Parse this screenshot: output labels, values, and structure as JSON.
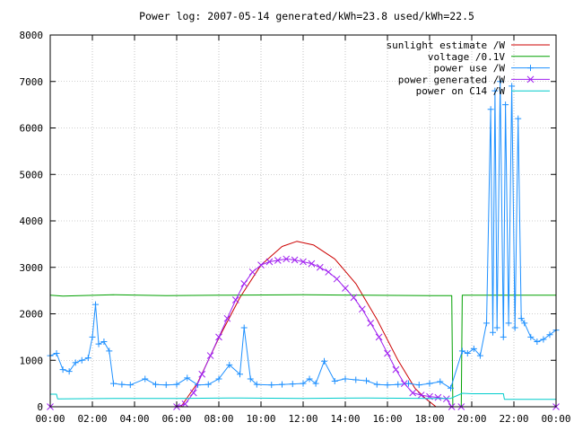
{
  "chart_data": {
    "type": "line",
    "title": "Power log: 2007-05-14 generated/kWh=23.8 used/kWh=22.5",
    "xlabel": "",
    "ylabel": "",
    "x_unit": "hours",
    "xlim": [
      0,
      24
    ],
    "ylim": [
      0,
      8000
    ],
    "x_ticks": [
      0,
      2,
      4,
      6,
      8,
      10,
      12,
      14,
      16,
      18,
      20,
      22,
      24
    ],
    "x_tick_labels": [
      "00:00",
      "02:00",
      "04:00",
      "06:00",
      "08:00",
      "10:00",
      "12:00",
      "14:00",
      "16:00",
      "18:00",
      "20:00",
      "22:00",
      "00:00"
    ],
    "y_ticks": [
      0,
      1000,
      2000,
      3000,
      4000,
      5000,
      6000,
      7000,
      8000
    ],
    "y_tick_labels": [
      "0",
      "1000",
      "2000",
      "3000",
      "4000",
      "5000",
      "6000",
      "7000",
      "8000"
    ],
    "grid": true,
    "legend_position": "top-right",
    "series": [
      {
        "name": "sunlight estimate /W",
        "color": "#cc0000",
        "marker": "none",
        "x": [
          6.2,
          7.0,
          8.0,
          9.0,
          10.0,
          11.0,
          11.7,
          12.5,
          13.5,
          14.5,
          15.5,
          16.5,
          17.3,
          17.8,
          18.3
        ],
        "y": [
          0,
          520,
          1480,
          2350,
          3050,
          3450,
          3560,
          3480,
          3180,
          2650,
          1880,
          1000,
          400,
          180,
          0
        ]
      },
      {
        "name": "voltage /0.1V",
        "color": "#00a000",
        "marker": "none",
        "x": [
          0.0,
          0.6,
          3.0,
          5.5,
          8.0,
          12.0,
          15.0,
          18.0,
          19.05,
          19.1,
          19.5,
          19.55,
          20.0,
          22.0,
          24.0
        ],
        "y": [
          2400,
          2380,
          2410,
          2390,
          2400,
          2410,
          2400,
          2390,
          2390,
          0,
          0,
          2400,
          2400,
          2400,
          2400
        ]
      },
      {
        "name": "power use /W",
        "color": "#1e90ff",
        "marker": "plus",
        "x": [
          0.0,
          0.3,
          0.6,
          0.9,
          1.2,
          1.5,
          1.8,
          2.0,
          2.15,
          2.3,
          2.55,
          2.8,
          3.0,
          3.4,
          3.8,
          4.5,
          5.0,
          5.5,
          6.0,
          6.5,
          7.0,
          7.5,
          8.0,
          8.5,
          9.0,
          9.2,
          9.5,
          9.8,
          10.5,
          11.0,
          11.5,
          12.0,
          12.3,
          12.6,
          13.0,
          13.5,
          14.0,
          14.5,
          15.0,
          15.5,
          16.0,
          16.5,
          17.0,
          17.5,
          18.0,
          18.5,
          19.0,
          19.55,
          19.8,
          20.1,
          20.4,
          20.7,
          20.9,
          21.0,
          21.1,
          21.2,
          21.35,
          21.5,
          21.6,
          21.75,
          21.9,
          22.05,
          22.2,
          22.35,
          22.5,
          22.8,
          23.1,
          23.4,
          23.7,
          24.0
        ],
        "y": [
          1100,
          1150,
          800,
          760,
          950,
          1000,
          1050,
          1500,
          2200,
          1350,
          1400,
          1200,
          500,
          480,
          470,
          600,
          480,
          470,
          480,
          620,
          470,
          480,
          600,
          900,
          700,
          1700,
          600,
          480,
          470,
          480,
          490,
          500,
          600,
          500,
          980,
          550,
          600,
          580,
          560,
          480,
          470,
          480,
          500,
          470,
          500,
          540,
          400,
          1200,
          1150,
          1250,
          1100,
          1800,
          6400,
          1600,
          6800,
          1700,
          7000,
          1500,
          6500,
          1800,
          6900,
          1700,
          6200,
          1900,
          1800,
          1500,
          1400,
          1450,
          1550,
          1650
        ]
      },
      {
        "name": "power generated /W",
        "color": "#a020f0",
        "marker": "cross",
        "x": [
          0.0,
          6.0,
          6.4,
          6.8,
          7.2,
          7.6,
          8.0,
          8.4,
          8.8,
          9.2,
          9.6,
          10.0,
          10.4,
          10.8,
          11.2,
          11.6,
          12.0,
          12.4,
          12.8,
          13.2,
          13.6,
          14.0,
          14.4,
          14.8,
          15.2,
          15.6,
          16.0,
          16.4,
          16.8,
          17.2,
          17.6,
          18.0,
          18.4,
          18.8,
          19.05,
          19.5,
          24.0
        ],
        "y": [
          0,
          0,
          60,
          300,
          700,
          1100,
          1500,
          1900,
          2300,
          2650,
          2900,
          3050,
          3120,
          3150,
          3180,
          3160,
          3120,
          3080,
          3000,
          2900,
          2750,
          2550,
          2350,
          2100,
          1800,
          1500,
          1150,
          800,
          500,
          300,
          250,
          220,
          200,
          170,
          0,
          0,
          0
        ]
      },
      {
        "name": "power on C14 /W",
        "color": "#00cccc",
        "marker": "none",
        "x": [
          0.0,
          0.3,
          0.35,
          3.0,
          6.0,
          9.0,
          12.0,
          15.0,
          18.0,
          19.0,
          19.55,
          20.0,
          21.5,
          21.55,
          24.0
        ],
        "y": [
          270,
          270,
          170,
          180,
          180,
          190,
          180,
          190,
          180,
          180,
          290,
          280,
          280,
          160,
          160
        ]
      }
    ]
  }
}
